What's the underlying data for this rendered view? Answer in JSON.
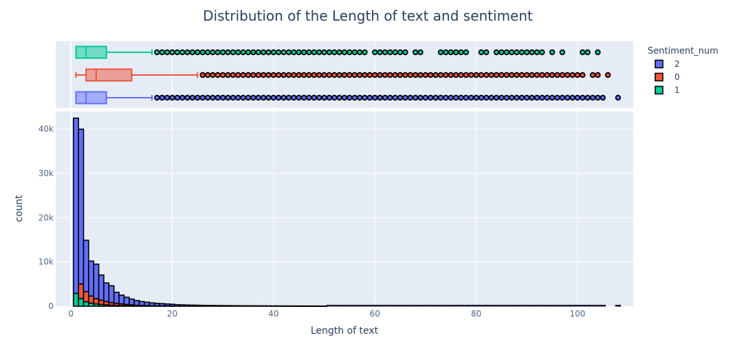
{
  "chart_data": {
    "type": "bar",
    "title": "Distribution of the Length of text and sentiment",
    "xlabel": "Length of text",
    "ylabel": "count",
    "xlim": [
      -3,
      111
    ],
    "ylim": [
      0,
      44000
    ],
    "x_ticks": [
      0,
      20,
      40,
      60,
      80,
      100
    ],
    "x_tick_labels": [
      "0",
      "20",
      "40",
      "60",
      "80",
      "100"
    ],
    "y_ticks": [
      0,
      10000,
      20000,
      30000,
      40000
    ],
    "y_tick_labels": [
      "0",
      "10k",
      "20k",
      "30k",
      "40k"
    ],
    "grid": true,
    "legend": {
      "title": "Sentiment_num",
      "position": "top-right",
      "entries": [
        "2",
        "0",
        "1"
      ]
    },
    "barmode": "stack",
    "bin_width": 1,
    "colors": {
      "2": "#636efa",
      "0": "#ef553b",
      "1": "#00cc96",
      "plot_bg": "#e5ecf6",
      "text": "#2a3f5f",
      "tick": "#506784"
    },
    "series": [
      {
        "name": "1",
        "bins": [
          1,
          2,
          3,
          4,
          5,
          6,
          7,
          8,
          9,
          10,
          11,
          12
        ],
        "values": [
          2900,
          1700,
          1000,
          700,
          500,
          400,
          300,
          220,
          170,
          130,
          90,
          70
        ]
      },
      {
        "name": "0",
        "bins": [
          1,
          2,
          3,
          4,
          5,
          6,
          7,
          8,
          9,
          10,
          11,
          12,
          13,
          14,
          15,
          16,
          17,
          18,
          19,
          20
        ],
        "values": [
          0,
          3300,
          2300,
          1600,
          1200,
          950,
          750,
          600,
          480,
          380,
          310,
          250,
          210,
          170,
          140,
          115,
          95,
          80,
          70,
          60
        ]
      },
      {
        "name": "2",
        "bins": [
          1,
          2,
          3,
          4,
          5,
          6,
          7,
          8,
          9,
          10,
          11,
          12,
          13,
          14,
          15,
          16,
          17,
          18,
          19,
          20,
          21,
          22,
          23,
          24,
          25,
          26,
          27,
          28,
          29,
          30,
          31,
          32,
          33,
          34,
          35,
          36,
          37,
          38,
          39,
          40,
          41,
          42,
          43,
          44,
          45,
          46,
          47,
          48,
          49,
          50
        ],
        "values": [
          39600,
          35000,
          11600,
          7900,
          7800,
          5700,
          4200,
          3800,
          2500,
          2000,
          1620,
          1300,
          1070,
          880,
          760,
          640,
          560,
          500,
          430,
          380,
          340,
          300,
          270,
          240,
          220,
          200,
          180,
          165,
          150,
          140,
          130,
          120,
          110,
          100,
          95,
          90,
          85,
          80,
          75,
          70,
          65,
          60,
          55,
          52,
          48,
          45,
          42,
          40,
          38,
          36
        ]
      }
    ],
    "boxplots": [
      {
        "name": "2",
        "lowerfence": 1,
        "q1": 1,
        "median": 3,
        "q3": 7,
        "upperfence": 16
      },
      {
        "name": "0",
        "lowerfence": 1,
        "q1": 3,
        "median": 5,
        "q3": 12,
        "upperfence": 25
      },
      {
        "name": "1",
        "lowerfence": 1,
        "q1": 1,
        "median": 3,
        "q3": 7,
        "upperfence": 16
      }
    ],
    "outliers": {
      "2": {
        "dense_ranges": [
          [
            17,
            105
          ]
        ],
        "extra": [
          108
        ]
      },
      "0": {
        "dense_ranges": [
          [
            26,
            101
          ]
        ],
        "extra": [
          103,
          104,
          106
        ]
      },
      "1": {
        "dense_ranges": [
          [
            17,
            58
          ]
        ],
        "extra": [
          60,
          61,
          62,
          63,
          64,
          65,
          66,
          68,
          69,
          73,
          74,
          75,
          76,
          77,
          78,
          81,
          82,
          84,
          85,
          86,
          87,
          88,
          89,
          90,
          91,
          92,
          93,
          95,
          97,
          101,
          102,
          104
        ]
      }
    }
  }
}
